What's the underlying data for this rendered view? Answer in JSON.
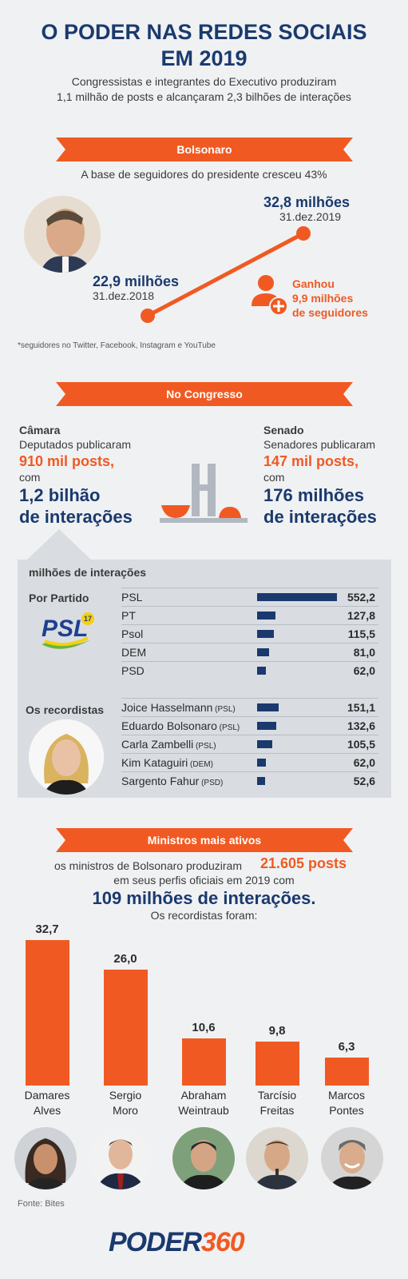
{
  "header": {
    "title_line1": "O PODER NAS REDES SOCIAIS",
    "title_line2": "EM 2019",
    "subtitle_line1": "Congressistas e integrantes do Executivo produziram",
    "subtitle_line2": "1,1 milhão de posts e alcançaram 2,3 bilhões de interações"
  },
  "bolsonaro": {
    "banner": "Bolsonaro",
    "lead": "A base de seguidores do presidente cresceu 43%",
    "start_value": "22,9 milhões",
    "start_date": "31.dez.2018",
    "end_value": "32,8 milhões",
    "end_date": "31.dez.2019",
    "gain_line1": "Ganhou",
    "gain_line2": "9,9 milhões",
    "gain_line3": "de seguidores",
    "footnote": "*seguidores no Twitter, Facebook, Instagram e YouTube",
    "icons": [
      "person-photo",
      "user-plus-icon"
    ]
  },
  "congresso": {
    "banner": "No Congresso",
    "camara": {
      "title": "Câmara",
      "line1": "Deputados publicaram",
      "posts": "910 mil posts,",
      "com": "com",
      "interactions_line1": "1,2 bilhão",
      "interactions_line2": "de interações"
    },
    "senado": {
      "title": "Senado",
      "line1": "Senadores publicaram",
      "posts": "147 mil posts,",
      "com": "com",
      "interactions_line1": "176 milhões",
      "interactions_line2": "de interações"
    },
    "panel_title": "milhões de interações",
    "party_heading": "Por Partido",
    "record_heading": "Os recordistas",
    "psl_logo_text": "PSL",
    "psl_logo_number": "17"
  },
  "ministros": {
    "banner": "Ministros mais ativos",
    "line1": "os ministros de Bolsonaro produziram",
    "posts": "21.605 posts",
    "line2": "em seus perfis oficiais em 2019 com",
    "interactions": "109 milhões de interações.",
    "line3": "Os recordistas foram:"
  },
  "footer": {
    "source": "Fonte: Bites",
    "logo_main": "PODER",
    "logo_num": "360"
  },
  "colors": {
    "navy": "#1a3a6e",
    "orange": "#f05a22",
    "background": "#f0f1f3",
    "panel": "#d9dde2"
  },
  "chart_data": [
    {
      "type": "line",
      "x": [
        "31.dez.2018",
        "31.dez.2019"
      ],
      "series": [
        {
          "values": [
            22.9,
            32.8
          ]
        }
      ],
      "unit": "milhões"
    },
    {
      "type": "bar",
      "orientation": "horizontal",
      "title": "Por Partido",
      "ylabel": "milhões de interações",
      "categories": [
        "PSL",
        "PT",
        "Psol",
        "DEM",
        "PSD"
      ],
      "values": [
        552.2,
        127.8,
        115.5,
        81.0,
        62.0
      ],
      "value_labels": [
        "552,2",
        "127,8",
        "115,5",
        "81,0",
        "62,0"
      ],
      "xlim": [
        0,
        552.2
      ]
    },
    {
      "type": "bar",
      "orientation": "horizontal",
      "title": "Os recordistas",
      "categories": [
        "Joice Hasselmann",
        "Eduardo Bolsonaro",
        "Carla Zambelli",
        "Kim Kataguiri",
        "Sargento Fahur"
      ],
      "parties": [
        "(PSL)",
        "(PSL)",
        "(PSL)",
        "(DEM)",
        "(PSD)"
      ],
      "values": [
        151.1,
        132.6,
        105.5,
        62.0,
        52.6
      ],
      "value_labels": [
        "151,1",
        "132,6",
        "105,5",
        "62,0",
        "52,6"
      ],
      "xlim": [
        0,
        552.2
      ]
    },
    {
      "type": "bar",
      "orientation": "vertical",
      "categories": [
        [
          "Damares",
          "Alves"
        ],
        [
          "Sergio",
          "Moro"
        ],
        [
          "Abraham",
          "Weintraub"
        ],
        [
          "Tarcísio",
          "Freitas"
        ],
        [
          "Marcos",
          "Pontes"
        ]
      ],
      "values": [
        32.7,
        26.0,
        10.6,
        9.8,
        6.3
      ],
      "value_labels": [
        "32,7",
        "26,0",
        "10,6",
        "9,8",
        "6,3"
      ],
      "ylim": [
        0,
        32.7
      ]
    }
  ]
}
